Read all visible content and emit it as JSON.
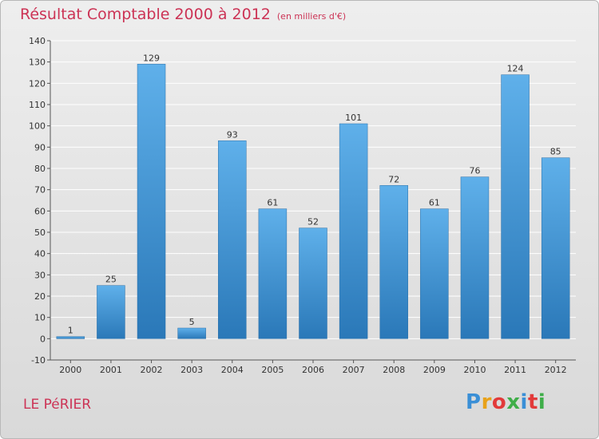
{
  "header": {
    "title": "Résultat Comptable 2000 à 2012",
    "unit": "(en milliers d'€)"
  },
  "footer": {
    "place": "LE PéRIER",
    "logo_letters": [
      "P",
      "r",
      "o",
      "x",
      "i",
      "t",
      "i"
    ],
    "logo_colors": [
      "#3a8fd6",
      "#e8a21a",
      "#e23a3a",
      "#3fae49",
      "#3a8fd6",
      "#e23a3a",
      "#3fae49"
    ]
  },
  "colors": {
    "title": "#cc3355",
    "bar_light": "#5fb0ea",
    "bar_dark": "#2a78b8"
  },
  "chart_data": {
    "type": "bar",
    "title": "Résultat Comptable 2000 à 2012",
    "subtitle": "(en milliers d'€)",
    "xlabel": "",
    "ylabel": "",
    "categories": [
      "2000",
      "2001",
      "2002",
      "2003",
      "2004",
      "2005",
      "2006",
      "2007",
      "2008",
      "2009",
      "2010",
      "2011",
      "2012"
    ],
    "values": [
      1,
      25,
      129,
      5,
      93,
      61,
      52,
      101,
      72,
      61,
      76,
      124,
      85
    ],
    "ylim": [
      -10,
      140
    ],
    "yticks": [
      -10,
      0,
      10,
      20,
      30,
      40,
      50,
      60,
      70,
      80,
      90,
      100,
      110,
      120,
      130,
      140
    ],
    "grid": true
  }
}
